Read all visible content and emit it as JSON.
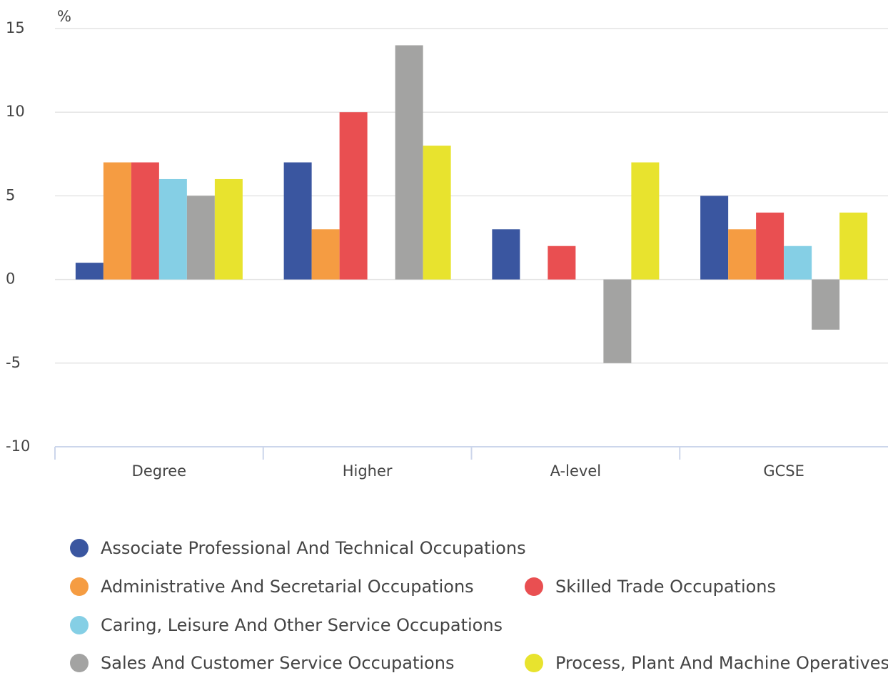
{
  "chart_data": {
    "type": "bar",
    "y_label": "%",
    "categories": [
      "Degree",
      "Higher",
      "A-level",
      "GCSE"
    ],
    "series": [
      {
        "name": "Associate Professional And Technical Occupations",
        "color": "#3a56a0",
        "values": [
          1,
          7,
          3,
          5
        ]
      },
      {
        "name": "Administrative And Secretarial Occupations",
        "color": "#f59c42",
        "values": [
          7,
          3,
          null,
          3
        ]
      },
      {
        "name": "Skilled Trade Occupations",
        "color": "#e94f51",
        "values": [
          7,
          10,
          2,
          4
        ]
      },
      {
        "name": "Caring, Leisure And Other Service Occupations",
        "color": "#85cfe5",
        "values": [
          6,
          null,
          null,
          2
        ]
      },
      {
        "name": "Sales And Customer Service Occupations",
        "color": "#a3a3a2",
        "values": [
          5,
          14,
          -5,
          -3
        ]
      },
      {
        "name": "Process, Plant And Machine Operatives",
        "color": "#e8e32e",
        "values": [
          6,
          8,
          7,
          4
        ]
      }
    ],
    "ylim": [
      -10,
      15
    ],
    "yticks": [
      -10,
      -5,
      0,
      5,
      10,
      15
    ],
    "grid": true
  }
}
